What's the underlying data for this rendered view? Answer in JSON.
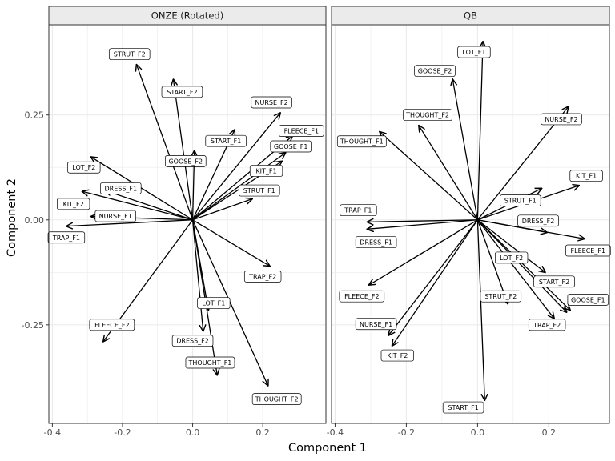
{
  "chart_data": {
    "type": "vector-biplot",
    "xlabel": "Component 1",
    "ylabel": "Component 2",
    "colors": {
      "panel_bg": "#ffffff",
      "strip_bg": "#ebebeb",
      "grid": "#ebebeb",
      "border": "#333333",
      "arrow": "#000000"
    },
    "panels": [
      {
        "title": "ONZE (Rotated)",
        "xlim": [
          -0.41,
          0.38
        ],
        "ylim": [
          -0.485,
          0.465
        ],
        "xticks": [
          -0.4,
          -0.2,
          0.0,
          0.2
        ],
        "xtick_labels": [
          "-0.4",
          "-0.2",
          "0.0",
          "0.2"
        ],
        "yticks": [
          -0.25,
          0.0,
          0.25
        ],
        "ytick_labels": [
          "-0.25",
          "0.00",
          "0.25"
        ],
        "vectors": [
          {
            "label": "STRUT_F2",
            "x": -0.16,
            "y": 0.37,
            "lx": -0.18,
            "ly": 0.395
          },
          {
            "label": "START_F2",
            "x": -0.055,
            "y": 0.335,
            "lx": -0.03,
            "ly": 0.305
          },
          {
            "label": "NURSE_F2",
            "x": 0.25,
            "y": 0.255,
            "lx": 0.225,
            "ly": 0.28
          },
          {
            "label": "FLEECE_F1",
            "x": 0.285,
            "y": 0.2,
            "lx": 0.31,
            "ly": 0.212
          },
          {
            "label": "GOOSE_F1",
            "x": 0.265,
            "y": 0.16,
            "lx": 0.28,
            "ly": 0.175
          },
          {
            "label": "START_F1",
            "x": 0.12,
            "y": 0.215,
            "lx": 0.095,
            "ly": 0.188
          },
          {
            "label": "GOOSE_F2",
            "x": 0.005,
            "y": 0.165,
            "lx": -0.02,
            "ly": 0.14
          },
          {
            "label": "KIT_F1",
            "x": 0.255,
            "y": 0.14,
            "lx": 0.21,
            "ly": 0.117
          },
          {
            "label": "STRUT_F1",
            "x": 0.17,
            "y": 0.05,
            "lx": 0.19,
            "ly": 0.07
          },
          {
            "label": "LOT_F2",
            "x": -0.29,
            "y": 0.15,
            "lx": -0.31,
            "ly": 0.125
          },
          {
            "label": "DRESS_F1",
            "x": -0.25,
            "y": 0.07,
            "lx": -0.205,
            "ly": 0.075
          },
          {
            "label": "KIT_F2",
            "x": -0.315,
            "y": 0.068,
            "lx": -0.34,
            "ly": 0.038
          },
          {
            "label": "NURSE_F1",
            "x": -0.29,
            "y": 0.008,
            "lx": -0.22,
            "ly": 0.009
          },
          {
            "label": "TRAP_F1",
            "x": -0.36,
            "y": -0.015,
            "lx": -0.36,
            "ly": -0.042
          },
          {
            "label": "TRAP_F2",
            "x": 0.22,
            "y": -0.11,
            "lx": 0.2,
            "ly": -0.135
          },
          {
            "label": "LOT_F1",
            "x": 0.045,
            "y": -0.215,
            "lx": 0.06,
            "ly": -0.198
          },
          {
            "label": "FLEECE_F2",
            "x": -0.255,
            "y": -0.29,
            "lx": -0.23,
            "ly": -0.25
          },
          {
            "label": "DRESS_F2",
            "x": 0.03,
            "y": -0.265,
            "lx": 0.0,
            "ly": -0.288
          },
          {
            "label": "THOUGHT_F1",
            "x": 0.07,
            "y": -0.37,
            "lx": 0.05,
            "ly": -0.34
          },
          {
            "label": "THOUGHT_F2",
            "x": 0.215,
            "y": -0.395,
            "lx": 0.24,
            "ly": -0.427
          }
        ]
      },
      {
        "title": "QB",
        "xlim": [
          -0.41,
          0.37
        ],
        "ylim": [
          -0.485,
          0.465
        ],
        "xticks": [
          -0.4,
          -0.2,
          0.0,
          0.2
        ],
        "xtick_labels": [
          "-0.4",
          "-0.2",
          "0.0",
          "0.2"
        ],
        "yticks": [
          -0.25,
          0.0,
          0.25
        ],
        "ytick_labels": [
          "-0.25",
          "0.00",
          "0.25"
        ],
        "vectors": [
          {
            "label": "LOT_F1",
            "x": 0.015,
            "y": 0.425,
            "lx": -0.01,
            "ly": 0.4
          },
          {
            "label": "GOOSE_F2",
            "x": -0.07,
            "y": 0.335,
            "lx": -0.12,
            "ly": 0.355
          },
          {
            "label": "THOUGHT_F2",
            "x": -0.165,
            "y": 0.225,
            "lx": -0.14,
            "ly": 0.25
          },
          {
            "label": "NURSE_F2",
            "x": 0.255,
            "y": 0.27,
            "lx": 0.235,
            "ly": 0.24
          },
          {
            "label": "THOUGHT_F1",
            "x": -0.275,
            "y": 0.21,
            "lx": -0.325,
            "ly": 0.187
          },
          {
            "label": "KIT_F1",
            "x": 0.285,
            "y": 0.082,
            "lx": 0.305,
            "ly": 0.105
          },
          {
            "label": "STRUT_F1",
            "x": 0.18,
            "y": 0.075,
            "lx": 0.12,
            "ly": 0.046
          },
          {
            "label": "TRAP_F1",
            "x": -0.31,
            "y": -0.005,
            "lx": -0.335,
            "ly": 0.023
          },
          {
            "label": "DRESS_F2",
            "x": 0.195,
            "y": -0.03,
            "lx": 0.17,
            "ly": -0.002
          },
          {
            "label": "DRESS_F1",
            "x": -0.31,
            "y": -0.022,
            "lx": -0.285,
            "ly": -0.053
          },
          {
            "label": "FLEECE_F1",
            "x": 0.3,
            "y": -0.045,
            "lx": 0.31,
            "ly": -0.073
          },
          {
            "label": "LOT_F2",
            "x": 0.19,
            "y": -0.125,
            "lx": 0.095,
            "ly": -0.09
          },
          {
            "label": "START_F2",
            "x": 0.25,
            "y": -0.22,
            "lx": 0.215,
            "ly": -0.147
          },
          {
            "label": "GOOSE_F1",
            "x": 0.26,
            "y": -0.215,
            "lx": 0.31,
            "ly": -0.19
          },
          {
            "label": "TRAP_F2",
            "x": 0.215,
            "y": -0.235,
            "lx": 0.195,
            "ly": -0.25
          },
          {
            "label": "FLEECE_F2",
            "x": -0.305,
            "y": -0.155,
            "lx": -0.325,
            "ly": -0.182
          },
          {
            "label": "STRUT_F2",
            "x": 0.085,
            "y": -0.2,
            "lx": 0.065,
            "ly": -0.182
          },
          {
            "label": "NURSE_F1",
            "x": -0.25,
            "y": -0.275,
            "lx": -0.285,
            "ly": -0.248
          },
          {
            "label": "KIT_F2",
            "x": -0.24,
            "y": -0.3,
            "lx": -0.225,
            "ly": -0.323
          },
          {
            "label": "START_F1",
            "x": 0.02,
            "y": -0.43,
            "lx": -0.04,
            "ly": -0.447
          }
        ]
      }
    ]
  }
}
